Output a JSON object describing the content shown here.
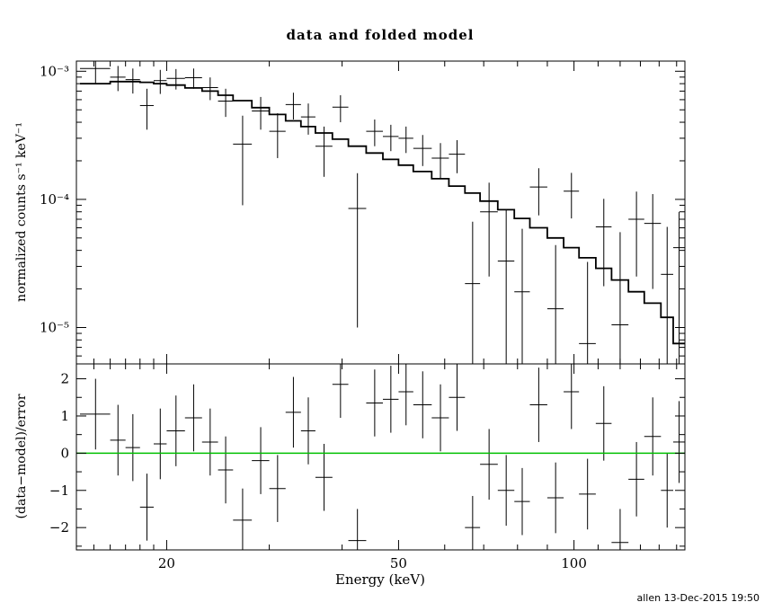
{
  "page": {
    "timestamp": "allen 13-Dec-2015 19:50",
    "background_color": "#ffffff",
    "foreground_color": "#000000"
  },
  "chart_data": {
    "type": "scatter",
    "title": "data and folded model",
    "xlabel": "Energy (keV)",
    "xscale": "log",
    "xlim": [
      14.0,
      155.0
    ],
    "x_major_ticks": [
      20,
      50,
      100
    ],
    "x_tick_labels": [
      "20",
      "50",
      "100"
    ],
    "x_minor_ticks": [
      15,
      16,
      17,
      18,
      19,
      30,
      40,
      60,
      70,
      80,
      90,
      110,
      120,
      130,
      140,
      150
    ],
    "grid": false,
    "legend": "none",
    "model_bins": {
      "columns": [
        "lo_keV",
        "hi_keV",
        "model_value"
      ],
      "rows": [
        [
          14.2,
          16,
          0.0008
        ],
        [
          16,
          17,
          0.00083
        ],
        [
          17,
          18,
          0.00083
        ],
        [
          18,
          19,
          0.00082
        ],
        [
          19,
          20,
          0.0008
        ],
        [
          20,
          21.5,
          0.00078
        ],
        [
          21.5,
          23,
          0.00074
        ],
        [
          23,
          24.5,
          0.0007
        ],
        [
          24.5,
          26,
          0.00065
        ],
        [
          26,
          28,
          0.00059
        ],
        [
          28,
          30,
          0.00052
        ],
        [
          30,
          32,
          0.00046
        ],
        [
          32,
          34,
          0.00041
        ],
        [
          34,
          36,
          0.00037
        ],
        [
          36,
          38.5,
          0.00033
        ],
        [
          38.5,
          41,
          0.000295
        ],
        [
          41,
          44,
          0.00026
        ],
        [
          44,
          47,
          0.00023
        ],
        [
          47,
          50,
          0.000205
        ],
        [
          50,
          53,
          0.000185
        ],
        [
          53,
          57,
          0.000165
        ],
        [
          57,
          61,
          0.000145
        ],
        [
          61,
          65,
          0.000127
        ],
        [
          65,
          69,
          0.000112
        ],
        [
          69,
          74,
          9.7e-05
        ],
        [
          74,
          79,
          8.3e-05
        ],
        [
          79,
          84,
          7.1e-05
        ],
        [
          84,
          90,
          6e-05
        ],
        [
          90,
          96,
          5e-05
        ],
        [
          96,
          102,
          4.2e-05
        ],
        [
          102,
          109,
          3.5e-05
        ],
        [
          109,
          116,
          2.9e-05
        ],
        [
          116,
          124,
          2.35e-05
        ],
        [
          124,
          132,
          1.9e-05
        ],
        [
          132,
          141,
          1.55e-05
        ],
        [
          141,
          148,
          1.2e-05
        ],
        [
          148,
          155,
          7.5e-06
        ]
      ]
    },
    "top_panel": {
      "ylabel": "normalized counts s⁻¹ keV⁻¹",
      "yscale": "log",
      "ylim": [
        5.2e-06,
        0.0012
      ],
      "y_major_ticks": [
        1e-05,
        0.0001,
        0.001
      ],
      "y_tick_labels": [
        "10⁻⁵",
        "10⁻⁴",
        "10⁻³"
      ],
      "y_minor_ticks": [
        6e-06,
        7e-06,
        8e-06,
        9e-06,
        2e-05,
        3e-05,
        4e-05,
        5e-05,
        6e-05,
        7e-05,
        8e-05,
        9e-05,
        0.0002,
        0.0003,
        0.0004,
        0.0005,
        0.0006,
        0.0007,
        0.0008,
        0.0009
      ],
      "points": {
        "columns": [
          "energy_keV",
          "half_width_keV",
          "value",
          "error"
        ],
        "rows": [
          [
            15.1,
            0.9,
            0.00105,
            0.00024
          ],
          [
            16.5,
            0.5,
            0.0009,
            0.0002
          ],
          [
            17.5,
            0.5,
            0.00086,
            0.00019
          ],
          [
            18.5,
            0.5,
            0.00054,
            0.00019
          ],
          [
            19.5,
            0.5,
            0.000845,
            0.00018
          ],
          [
            20.75,
            0.75,
            0.00088,
            0.00016
          ],
          [
            22.25,
            0.75,
            0.00089,
            0.00016
          ],
          [
            23.75,
            0.75,
            0.000745,
            0.00015
          ],
          [
            25.25,
            0.75,
            0.000585,
            0.000145
          ],
          [
            27,
            1,
            0.00027,
            0.00018
          ],
          [
            29,
            1,
            0.00049,
            0.00014
          ],
          [
            31,
            1,
            0.00034,
            0.00013
          ],
          [
            33,
            1,
            0.00055,
            0.00013
          ],
          [
            35,
            1,
            0.00044,
            0.00012
          ],
          [
            37.25,
            1.25,
            0.00026,
            0.00011
          ],
          [
            39.75,
            1.25,
            0.000525,
            0.000125
          ],
          [
            42.5,
            1.5,
            8.5e-05,
            7.5e-05
          ],
          [
            45.5,
            1.5,
            0.00034,
            8e-05
          ],
          [
            48.5,
            1.5,
            0.00031,
            7.2e-05
          ],
          [
            51.5,
            1.5,
            0.0003,
            7e-05
          ],
          [
            55,
            2,
            0.00025,
            6.8e-05
          ],
          [
            59,
            2,
            0.00021,
            6.5e-05
          ],
          [
            63,
            2,
            0.000225,
            6.5e-05
          ],
          [
            67,
            2,
            2.2e-05,
            4.5e-05
          ],
          [
            71.5,
            2.5,
            8e-05,
            5.5e-05
          ],
          [
            76.5,
            2.5,
            3.3e-05,
            5e-05
          ],
          [
            81.5,
            2.5,
            1.9e-05,
            4e-05
          ],
          [
            87,
            3,
            0.000125,
            5e-05
          ],
          [
            93,
            3,
            1.4e-05,
            3e-05
          ],
          [
            99,
            3,
            0.000116,
            4.5e-05
          ],
          [
            105.5,
            3.5,
            7.5e-06,
            2.5e-05
          ],
          [
            112.5,
            3.5,
            6.1e-05,
            4e-05
          ],
          [
            120,
            4,
            1.05e-05,
            4.5e-05
          ],
          [
            128,
            4,
            7e-05,
            4.5e-05
          ],
          [
            136.5,
            4.5,
            6.5e-05,
            4.5e-05
          ],
          [
            144.5,
            3.5,
            2.6e-05,
            3.5e-05
          ],
          [
            151.5,
            3.5,
            4.2e-05,
            3.8e-05
          ]
        ]
      }
    },
    "bottom_panel": {
      "ylabel": "(data−model)/error",
      "yscale": "linear",
      "ylim": [
        -2.6,
        2.4
      ],
      "y_major_ticks": [
        -2,
        -1,
        0,
        1,
        2
      ],
      "y_tick_labels": [
        "−2",
        "−1",
        "0",
        "1",
        "2"
      ],
      "y_minor_ticks": [
        -2.5,
        -1.5,
        -0.5,
        0.5,
        1.5
      ],
      "zero_line_color": "#00C000",
      "points": {
        "columns": [
          "energy_keV",
          "half_width_keV",
          "residual",
          "error"
        ],
        "rows": [
          [
            15.1,
            0.9,
            1.05,
            0.95
          ],
          [
            16.5,
            0.5,
            0.35,
            0.95
          ],
          [
            17.5,
            0.5,
            0.15,
            0.9
          ],
          [
            18.5,
            0.5,
            -1.45,
            0.9
          ],
          [
            19.5,
            0.5,
            0.25,
            0.95
          ],
          [
            20.75,
            0.75,
            0.6,
            0.95
          ],
          [
            22.25,
            0.75,
            0.95,
            0.9
          ],
          [
            23.75,
            0.75,
            0.3,
            0.9
          ],
          [
            25.25,
            0.75,
            -0.45,
            0.9
          ],
          [
            27,
            1,
            -1.8,
            0.85
          ],
          [
            29,
            1,
            -0.2,
            0.9
          ],
          [
            31,
            1,
            -0.95,
            0.9
          ],
          [
            33,
            1,
            1.1,
            0.95
          ],
          [
            35,
            1,
            0.6,
            0.9
          ],
          [
            37.25,
            1.25,
            -0.65,
            0.9
          ],
          [
            39.75,
            1.25,
            1.85,
            0.9
          ],
          [
            42.5,
            1.5,
            -2.35,
            0.85
          ],
          [
            45.5,
            1.5,
            1.35,
            0.9
          ],
          [
            48.5,
            1.5,
            1.45,
            0.9
          ],
          [
            51.5,
            1.5,
            1.65,
            0.9
          ],
          [
            55,
            2,
            1.3,
            0.9
          ],
          [
            59,
            2,
            0.95,
            0.9
          ],
          [
            63,
            2,
            1.5,
            0.9
          ],
          [
            67,
            2,
            -2.0,
            0.85
          ],
          [
            71.5,
            2.5,
            -0.3,
            0.95
          ],
          [
            76.5,
            2.5,
            -1.0,
            0.95
          ],
          [
            81.5,
            2.5,
            -1.3,
            0.9
          ],
          [
            87,
            3,
            1.3,
            1.0
          ],
          [
            93,
            3,
            -1.2,
            0.95
          ],
          [
            99,
            3,
            1.65,
            1.0
          ],
          [
            105.5,
            3.5,
            -1.1,
            0.95
          ],
          [
            112.5,
            3.5,
            0.8,
            1.0
          ],
          [
            120,
            4,
            -2.4,
            0.9
          ],
          [
            128,
            4,
            -0.7,
            1.0
          ],
          [
            136.5,
            4.5,
            0.45,
            1.05
          ],
          [
            144.5,
            3.5,
            -1.0,
            1.0
          ],
          [
            151.5,
            3.5,
            0.3,
            1.1
          ]
        ]
      }
    }
  }
}
